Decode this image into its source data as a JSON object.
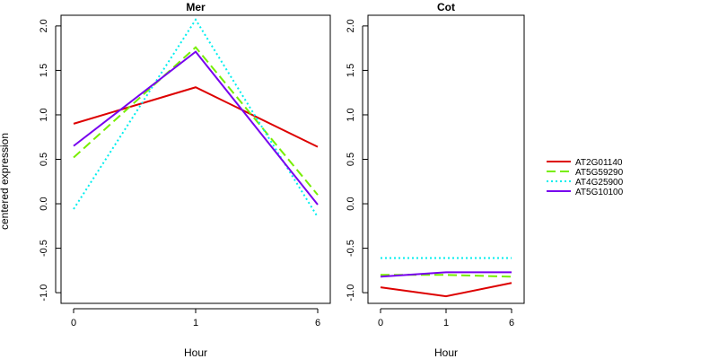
{
  "chart_data": {
    "type": "line",
    "ylabel": "centered expression",
    "legend_position": "right",
    "x_categories": [
      "0",
      "1",
      "6"
    ],
    "y_ticks": [
      -1.0,
      -0.5,
      0.0,
      0.5,
      1.0,
      1.5,
      2.0
    ],
    "y_tick_labels": [
      "-1.0",
      "-0.5",
      "0.0",
      "0.5",
      "1.0",
      "1.5",
      "2.0"
    ],
    "ylim": [
      -1.12,
      2.12
    ],
    "series_styles": [
      {
        "name": "AT2G01140",
        "color": "#dd0000",
        "dash": "none"
      },
      {
        "name": "AT5G59290",
        "color": "#77ee00",
        "dash": "10,5"
      },
      {
        "name": "AT4G25900",
        "color": "#00eeee",
        "dash": "2,3"
      },
      {
        "name": "AT5G10100",
        "color": "#7700ee",
        "dash": "none"
      }
    ],
    "panels": [
      {
        "title": "Mer",
        "xlabel": "Hour",
        "series": [
          {
            "name": "AT2G01140",
            "values": [
              0.9,
              1.31,
              0.64
            ]
          },
          {
            "name": "AT5G59290",
            "values": [
              0.52,
              1.76,
              0.1
            ]
          },
          {
            "name": "AT4G25900",
            "values": [
              -0.06,
              2.07,
              -0.15
            ]
          },
          {
            "name": "AT5G10100",
            "values": [
              0.65,
              1.71,
              -0.01
            ]
          }
        ]
      },
      {
        "title": "Cot",
        "xlabel": "Hour",
        "series": [
          {
            "name": "AT2G01140",
            "values": [
              -0.94,
              -1.04,
              -0.89
            ]
          },
          {
            "name": "AT5G59290",
            "values": [
              -0.8,
              -0.8,
              -0.82
            ]
          },
          {
            "name": "AT4G25900",
            "values": [
              -0.61,
              -0.61,
              -0.61
            ]
          },
          {
            "name": "AT5G10100",
            "values": [
              -0.82,
              -0.77,
              -0.77
            ]
          }
        ]
      }
    ]
  }
}
